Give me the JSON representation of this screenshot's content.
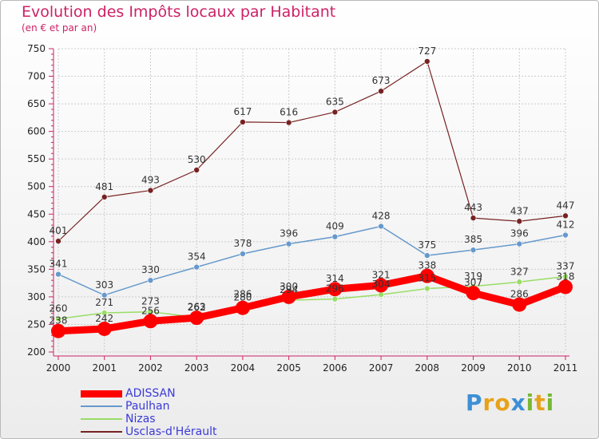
{
  "header": {
    "title": "Evolution des Impôts locaux par Habitant",
    "subtitle": "(en € et par an)"
  },
  "logo": {
    "text": "Proxiti",
    "letter_colors": [
      "#3d8fd6",
      "#e8a21a",
      "#e8a21a",
      "#3d8fd6",
      "#7ab833",
      "#e8a21a",
      "#7ab833"
    ]
  },
  "colors": {
    "title": "#cc2266",
    "axis": "#cc2266",
    "grid": "#cccccc",
    "tick_text": "#222222",
    "legend_text": "#3a3ad8"
  },
  "chart_data": {
    "type": "line",
    "title": "Evolution des Impôts locaux par Habitant",
    "subtitle": "(en € et par an)",
    "xlabel": "",
    "ylabel": "",
    "x": [
      "2000",
      "2001",
      "2002",
      "2003",
      "2004",
      "2005",
      "2006",
      "2007",
      "2008",
      "2009",
      "2010",
      "2011"
    ],
    "ylim": [
      200,
      750
    ],
    "yticks": [
      200,
      250,
      300,
      350,
      400,
      450,
      500,
      550,
      600,
      650,
      700,
      750
    ],
    "grid": true,
    "legend_position": "bottom-left",
    "series": [
      {
        "name": "ADISSAN",
        "color": "#ff0000",
        "width": 9,
        "marker": 9,
        "label_pos": "above",
        "values": [
          238,
          242,
          256,
          262,
          280,
          300,
          314,
          321,
          338,
          307,
          286,
          318
        ]
      },
      {
        "name": "Paulhan",
        "color": "#6699cc",
        "width": 1.5,
        "marker": 3.5,
        "label_pos": "above",
        "values": [
          341,
          303,
          330,
          354,
          378,
          396,
          409,
          428,
          375,
          385,
          396,
          412
        ]
      },
      {
        "name": "Nizas",
        "color": "#99dd66",
        "width": 1.5,
        "marker": 3.5,
        "label_pos": "above",
        "values": [
          260,
          271,
          273,
          263,
          286,
          294,
          296,
          304,
          315,
          319,
          327,
          337
        ]
      },
      {
        "name": "Usclas-d'Hérault",
        "color": "#772222",
        "width": 1.2,
        "marker": 3.5,
        "label_pos": "above",
        "values": [
          401,
          481,
          493,
          530,
          617,
          616,
          635,
          673,
          727,
          443,
          437,
          447
        ]
      }
    ]
  }
}
